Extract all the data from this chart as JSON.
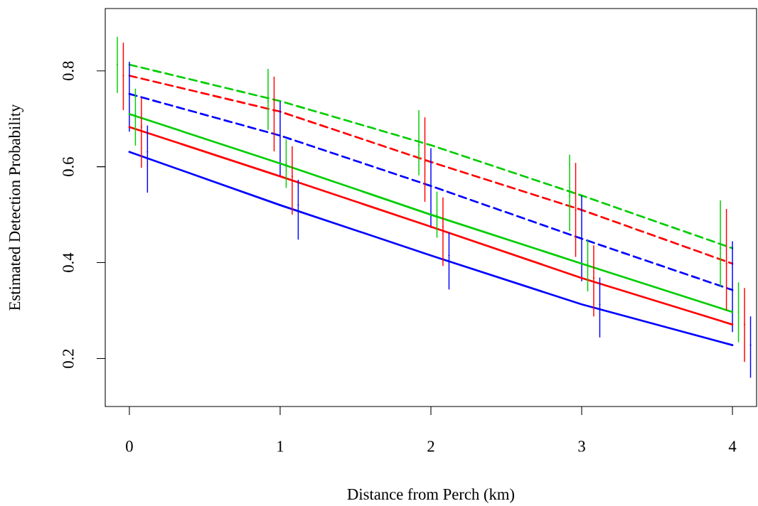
{
  "chart_data": {
    "type": "line",
    "xlabel": "Distance from Perch (km)",
    "ylabel": "Estimated Detection Probability",
    "x": [
      0,
      1,
      2,
      3,
      4
    ],
    "xlim": [
      -0.16,
      4.16
    ],
    "ylim": [
      0.1,
      0.93
    ],
    "xticks": [
      0,
      1,
      2,
      3,
      4
    ],
    "yticks": [
      0.2,
      0.4,
      0.6,
      0.8
    ],
    "marker": "none",
    "series": [
      {
        "color": "#00cd00",
        "line_style": "dashed",
        "values": [
          0.813,
          0.737,
          0.645,
          0.54,
          0.43
        ]
      },
      {
        "color": "#ff0000",
        "line_style": "dashed",
        "values": [
          0.79,
          0.715,
          0.61,
          0.51,
          0.398
        ]
      },
      {
        "color": "#0000ff",
        "line_style": "dashed",
        "values": [
          0.752,
          0.665,
          0.56,
          0.45,
          0.343
        ],
        "errors": [
          [
            0.674,
            0.818
          ],
          [
            0.582,
            0.735
          ],
          [
            0.473,
            0.638
          ],
          [
            0.362,
            0.539
          ],
          [
            0.256,
            0.444
          ]
        ]
      },
      {
        "color": "#00cd00",
        "line_style": "solid",
        "values": [
          0.71,
          0.607,
          0.5,
          0.398,
          0.297
        ]
      },
      {
        "color": "#ff0000",
        "line_style": "solid",
        "values": [
          0.683,
          0.58,
          0.475,
          0.368,
          0.271
        ]
      },
      {
        "color": "#0000ff",
        "line_style": "solid",
        "values": [
          0.631,
          0.52,
          0.415,
          0.313,
          0.228
        ]
      },
      {
        "type": "scatter",
        "color": "#00cd00",
        "x": [
          -0.08,
          0.92,
          1.92,
          2.92,
          3.92
        ],
        "values": [
          0.813,
          0.737,
          0.645,
          0.54,
          0.43
        ],
        "errors": [
          [
            0.754,
            0.871
          ],
          [
            0.677,
            0.804
          ],
          [
            0.582,
            0.718
          ],
          [
            0.466,
            0.625
          ],
          [
            0.35,
            0.53
          ]
        ]
      },
      {
        "type": "scatter",
        "color": "#ff0000",
        "x": [
          -0.04,
          0.96,
          1.96,
          2.96,
          3.96
        ],
        "values": [
          0.79,
          0.715,
          0.61,
          0.51,
          0.398
        ],
        "errors": [
          [
            0.718,
            0.859
          ],
          [
            0.632,
            0.788
          ],
          [
            0.527,
            0.703
          ],
          [
            0.412,
            0.608
          ],
          [
            0.301,
            0.512
          ]
        ]
      },
      {
        "type": "scatter",
        "color": "#00cd00",
        "x": [
          0.04,
          1.04,
          2.04,
          3.04,
          4.04
        ],
        "values": [
          0.71,
          0.607,
          0.5,
          0.398,
          0.297
        ],
        "errors": [
          [
            0.644,
            0.763
          ],
          [
            0.556,
            0.657
          ],
          [
            0.452,
            0.548
          ],
          [
            0.34,
            0.447
          ],
          [
            0.234,
            0.359
          ]
        ]
      },
      {
        "type": "scatter",
        "color": "#ff0000",
        "x": [
          0.08,
          1.08,
          2.08,
          3.08,
          4.08
        ],
        "values": [
          0.683,
          0.58,
          0.475,
          0.368,
          0.271
        ],
        "errors": [
          [
            0.598,
            0.744
          ],
          [
            0.5,
            0.643
          ],
          [
            0.393,
            0.536
          ],
          [
            0.288,
            0.436
          ],
          [
            0.193,
            0.347
          ]
        ]
      },
      {
        "type": "scatter",
        "color": "#0000ff",
        "x": [
          0.12,
          1.12,
          2.12,
          3.12,
          4.12
        ],
        "values": [
          0.631,
          0.52,
          0.415,
          0.313,
          0.228
        ],
        "errors": [
          [
            0.546,
            0.686
          ],
          [
            0.448,
            0.573
          ],
          [
            0.344,
            0.463
          ],
          [
            0.244,
            0.369
          ],
          [
            0.16,
            0.288
          ]
        ]
      }
    ]
  }
}
